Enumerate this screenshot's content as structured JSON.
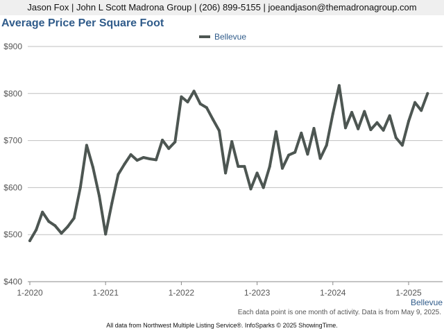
{
  "header": {
    "contact": "Jason Fox | John L Scott Madrona Group | (206) 899-5155 | joeandjason@themadronagroup.com"
  },
  "footer": {
    "note": "Each data point is one month of activity. Data is from May 9, 2025.",
    "source": "All data from Northwest Multiple Listing Service®. InfoSparks © 2025 ShowingTime."
  },
  "chart_data": {
    "type": "line",
    "title": "Average Price Per Square Foot",
    "legend": "top-center",
    "grid": true,
    "colors": {
      "series": "#4d5652",
      "grid": "#bfbfbf",
      "title": "#2f5b8a"
    },
    "ylim": [
      400,
      900
    ],
    "yticks": [
      400,
      500,
      600,
      700,
      800,
      900
    ],
    "ytick_labels": [
      "$400",
      "$500",
      "$600",
      "$700",
      "$800",
      "$900"
    ],
    "xticks": [
      "1-2020",
      "1-2021",
      "1-2022",
      "1-2023",
      "1-2024",
      "1-2025"
    ],
    "x_start": "1-2020",
    "x_end": "4-2025",
    "series": [
      {
        "name": "Bellevue",
        "x": [
          "1-2020",
          "2-2020",
          "3-2020",
          "4-2020",
          "5-2020",
          "6-2020",
          "7-2020",
          "8-2020",
          "9-2020",
          "10-2020",
          "11-2020",
          "12-2020",
          "1-2021",
          "2-2021",
          "3-2021",
          "4-2021",
          "5-2021",
          "6-2021",
          "7-2021",
          "8-2021",
          "9-2021",
          "10-2021",
          "11-2021",
          "12-2021",
          "1-2022",
          "2-2022",
          "3-2022",
          "4-2022",
          "5-2022",
          "6-2022",
          "7-2022",
          "8-2022",
          "9-2022",
          "10-2022",
          "11-2022",
          "12-2022",
          "1-2023",
          "2-2023",
          "3-2023",
          "4-2023",
          "5-2023",
          "6-2023",
          "7-2023",
          "8-2023",
          "9-2023",
          "10-2023",
          "11-2023",
          "12-2023",
          "1-2024",
          "2-2024",
          "3-2024",
          "4-2024",
          "5-2024",
          "6-2024",
          "7-2024",
          "8-2024",
          "9-2024",
          "10-2024",
          "11-2024",
          "12-2024",
          "1-2025",
          "2-2025",
          "3-2025",
          "4-2025"
        ],
        "values": [
          487,
          510,
          548,
          528,
          519,
          503,
          517,
          535,
          600,
          690,
          643,
          582,
          501,
          567,
          628,
          650,
          670,
          658,
          664,
          661,
          659,
          701,
          683,
          697,
          793,
          782,
          805,
          778,
          770,
          745,
          721,
          631,
          698,
          645,
          645,
          597,
          631,
          600,
          645,
          719,
          641,
          669,
          675,
          716,
          671,
          726,
          662,
          690,
          757,
          817,
          727,
          760,
          725,
          762,
          723,
          738,
          722,
          753,
          706,
          690,
          741,
          781,
          764,
          800
        ]
      }
    ]
  }
}
